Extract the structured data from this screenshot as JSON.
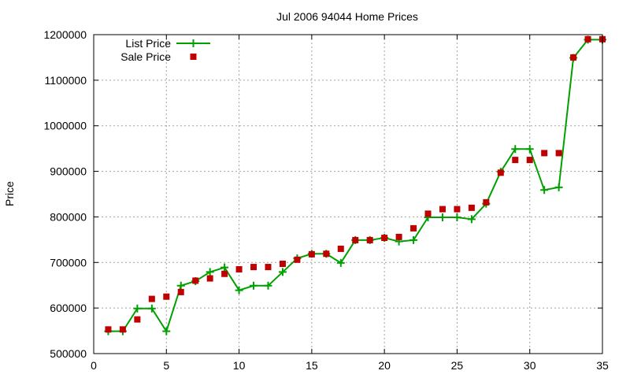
{
  "chart_data": {
    "type": "line",
    "title": "Jul 2006 94044 Home Prices",
    "xlabel": "",
    "ylabel": "Price",
    "xlim": [
      0,
      35
    ],
    "ylim": [
      500000,
      1200000
    ],
    "x_ticks": [
      "0",
      "5",
      "10",
      "15",
      "20",
      "25",
      "30",
      "35"
    ],
    "y_ticks": [
      "500000",
      "600000",
      "700000",
      "800000",
      "900000",
      "1000000",
      "1100000",
      "1200000"
    ],
    "grid": true,
    "legend_position": "top-left",
    "series": [
      {
        "name": "List Price",
        "style": "line-with-plus-markers",
        "color": "#00a000",
        "x": [
          1,
          2,
          3,
          4,
          5,
          6,
          7,
          8,
          9,
          10,
          11,
          12,
          13,
          14,
          15,
          16,
          17,
          18,
          19,
          20,
          21,
          22,
          23,
          24,
          25,
          26,
          27,
          28,
          29,
          30,
          31,
          32,
          33,
          34,
          35
        ],
        "values": [
          549000,
          549000,
          599000,
          599000,
          549000,
          649000,
          659000,
          679000,
          689000,
          639000,
          649000,
          649000,
          679000,
          709000,
          719000,
          719000,
          699000,
          749000,
          749000,
          754000,
          746000,
          749000,
          799000,
          799000,
          799000,
          795000,
          829000,
          899000,
          949000,
          949000,
          859000,
          865000,
          1149000,
          1189000,
          1189000
        ]
      },
      {
        "name": "Sale Price",
        "style": "square-markers",
        "color": "#c00000",
        "x": [
          1,
          2,
          3,
          4,
          5,
          6,
          7,
          8,
          9,
          10,
          11,
          12,
          13,
          14,
          15,
          16,
          17,
          18,
          19,
          20,
          21,
          22,
          23,
          24,
          25,
          26,
          27,
          28,
          29,
          30,
          31,
          32,
          33,
          34,
          35
        ],
        "values": [
          553000,
          553000,
          575000,
          620000,
          625000,
          635000,
          660000,
          665000,
          675000,
          685000,
          690000,
          690000,
          697000,
          706000,
          718000,
          719000,
          730000,
          749000,
          749000,
          754000,
          756000,
          775000,
          807000,
          817000,
          817000,
          820000,
          832000,
          897000,
          925000,
          925000,
          940000,
          940000,
          1150000,
          1190000,
          1190000
        ]
      }
    ]
  }
}
